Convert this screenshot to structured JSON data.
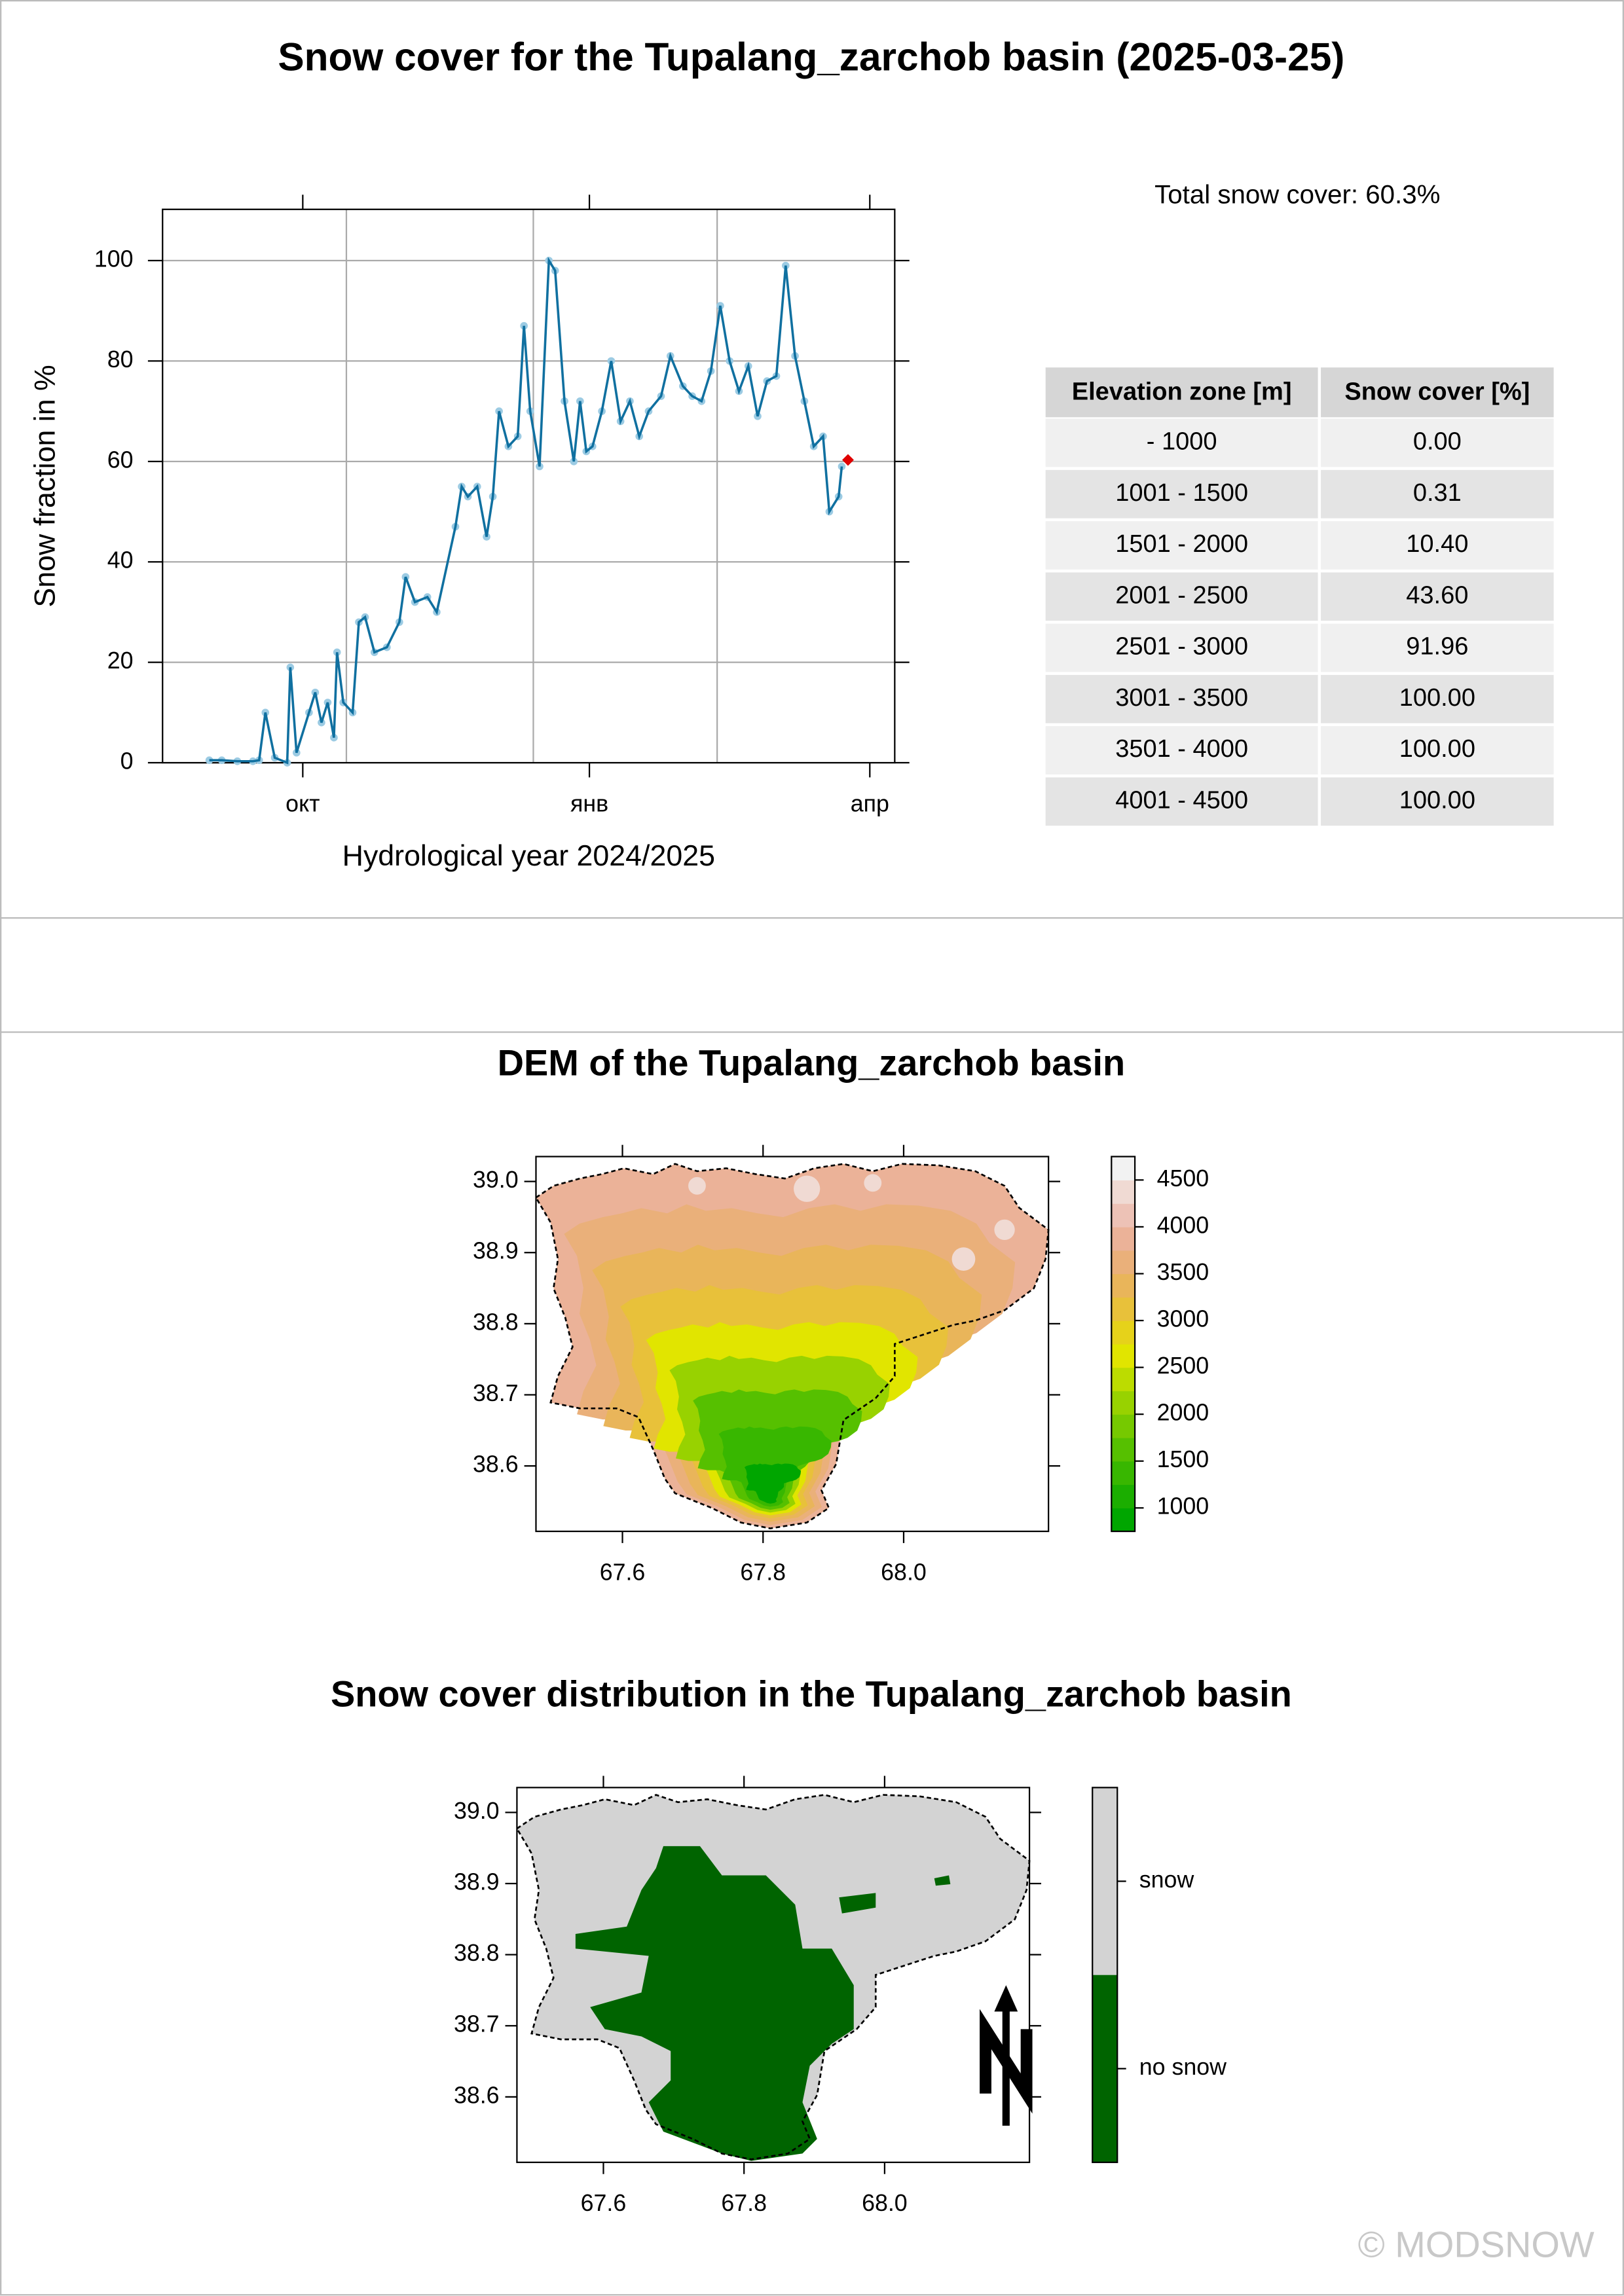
{
  "title": "Snow cover for the Tupalang_zarchob basin (2025-03-25)",
  "chart_data": [
    {
      "type": "line",
      "ylabel": "Snow fraction in %",
      "xlabel": "Hydrological year 2024/2025",
      "annotation": "Total snow cover: 60.3%",
      "xlim": [
        "2024-08-17",
        "2025-04-09"
      ],
      "ylim": [
        0,
        110.2
      ],
      "xticks": [
        {
          "value": "2024-10-01",
          "label": "окт"
        },
        {
          "value": "2025-01-01",
          "label": "янв"
        },
        {
          "value": "2025-04-01",
          "label": "апр"
        }
      ],
      "yticks": [
        0,
        20,
        40,
        60,
        80,
        100
      ],
      "xgrid": [
        "2024-10-15",
        "2024-12-14",
        "2025-02-11"
      ],
      "grid": true,
      "series": [
        {
          "color": "#1070A0",
          "point_color": "#9CCBE3",
          "x": [
            "2024-09-01",
            "2024-09-05",
            "2024-09-10",
            "2024-09-15",
            "2024-09-17",
            "2024-09-19",
            "2024-09-22",
            "2024-09-26",
            "2024-09-27",
            "2024-09-29",
            "2024-10-03",
            "2024-10-05",
            "2024-10-07",
            "2024-10-09",
            "2024-10-11",
            "2024-10-12",
            "2024-10-14",
            "2024-10-17",
            "2024-10-19",
            "2024-10-21",
            "2024-10-24",
            "2024-10-28",
            "2024-11-01",
            "2024-11-03",
            "2024-11-06",
            "2024-11-10",
            "2024-11-13",
            "2024-11-19",
            "2024-11-21",
            "2024-11-23",
            "2024-11-26",
            "2024-11-29",
            "2024-12-01",
            "2024-12-03",
            "2024-12-06",
            "2024-12-09",
            "2024-12-11",
            "2024-12-13",
            "2024-12-16",
            "2024-12-19",
            "2024-12-21",
            "2024-12-24",
            "2024-12-27",
            "2024-12-29",
            "2024-12-31",
            "2025-01-02",
            "2025-01-05",
            "2025-01-08",
            "2025-01-11",
            "2025-01-14",
            "2025-01-17",
            "2025-01-20",
            "2025-01-24",
            "2025-01-27",
            "2025-01-31",
            "2025-02-03",
            "2025-02-06",
            "2025-02-09",
            "2025-02-12",
            "2025-02-15",
            "2025-02-18",
            "2025-02-21",
            "2025-02-24",
            "2025-02-27",
            "2025-03-02",
            "2025-03-05",
            "2025-03-08",
            "2025-03-11",
            "2025-03-14",
            "2025-03-17",
            "2025-03-19",
            "2025-03-22",
            "2025-03-23"
          ],
          "values": [
            0.5,
            0.5,
            0.3,
            0.3,
            0.5,
            10,
            1,
            0,
            19,
            2,
            10,
            14,
            8,
            12,
            5,
            22,
            12,
            10,
            28,
            29,
            22,
            23,
            28,
            37,
            32,
            33,
            30,
            47,
            55,
            53,
            55,
            45,
            53,
            70,
            63,
            65,
            87,
            70,
            59,
            100,
            98,
            72,
            60,
            72,
            62,
            63,
            70,
            80,
            68,
            72,
            65,
            70,
            73,
            81,
            75,
            73,
            72,
            78,
            91,
            80,
            74,
            79,
            69,
            76,
            77,
            99,
            81,
            72,
            63,
            65,
            50,
            53,
            59
          ]
        }
      ],
      "highlight": {
        "x": "2025-03-25",
        "value": 60.3,
        "color": "#E00000"
      }
    },
    {
      "type": "map",
      "title": "DEM of the Tupalang_zarchob basin",
      "xlim": [
        67.477,
        68.206
      ],
      "ylim": [
        38.508,
        39.035
      ],
      "xticks": [
        67.6,
        67.8,
        {
          "value": 68,
          "label": "68.0"
        }
      ],
      "yticks": [
        38.6,
        38.7,
        38.8,
        38.9,
        {
          "value": 39,
          "label": "39.0"
        }
      ],
      "colorbar": {
        "zlim": [
          750,
          4750
        ],
        "ticks": [
          1000,
          1500,
          2000,
          2500,
          3000,
          3500,
          4000,
          4500
        ],
        "colors": [
          "#00A600",
          "#1BAE00",
          "#38B700",
          "#56C000",
          "#76C900",
          "#98D200",
          "#BCDC00",
          "#E1E500",
          "#E6D21A",
          "#E8C13A",
          "#E9B55A",
          "#EAB07A",
          "#EBB298",
          "#EDC2B6",
          "#F0DAD3",
          "#F2F2F2"
        ]
      }
    },
    {
      "type": "map",
      "title": "Snow cover distribution in the Tupalang_zarchob basin",
      "xlim": [
        67.477,
        68.206
      ],
      "ylim": [
        38.508,
        39.035
      ],
      "xticks": [
        67.6,
        67.8,
        {
          "value": 68,
          "label": "68.0"
        }
      ],
      "yticks": [
        38.6,
        38.7,
        38.8,
        38.9,
        {
          "value": 39,
          "label": "39.0"
        }
      ],
      "legend": {
        "categories": [
          "no snow",
          "snow"
        ],
        "colors": [
          "#006400",
          "#D3D3D3"
        ]
      }
    }
  ],
  "table": {
    "columns": [
      "Elevation zone [m]",
      "Snow cover [%]"
    ],
    "rows": [
      [
        "- 1000",
        "0.00"
      ],
      [
        "1001 - 1500",
        "0.31"
      ],
      [
        "1501 - 2000",
        "10.40"
      ],
      [
        "2001 - 2500",
        "43.60"
      ],
      [
        "2501 - 3000",
        "91.96"
      ],
      [
        "3001 - 3500",
        "100.00"
      ],
      [
        "3501 - 4000",
        "100.00"
      ],
      [
        "4001 - 4500",
        "100.00"
      ]
    ]
  },
  "footer": "© MODSNOW"
}
